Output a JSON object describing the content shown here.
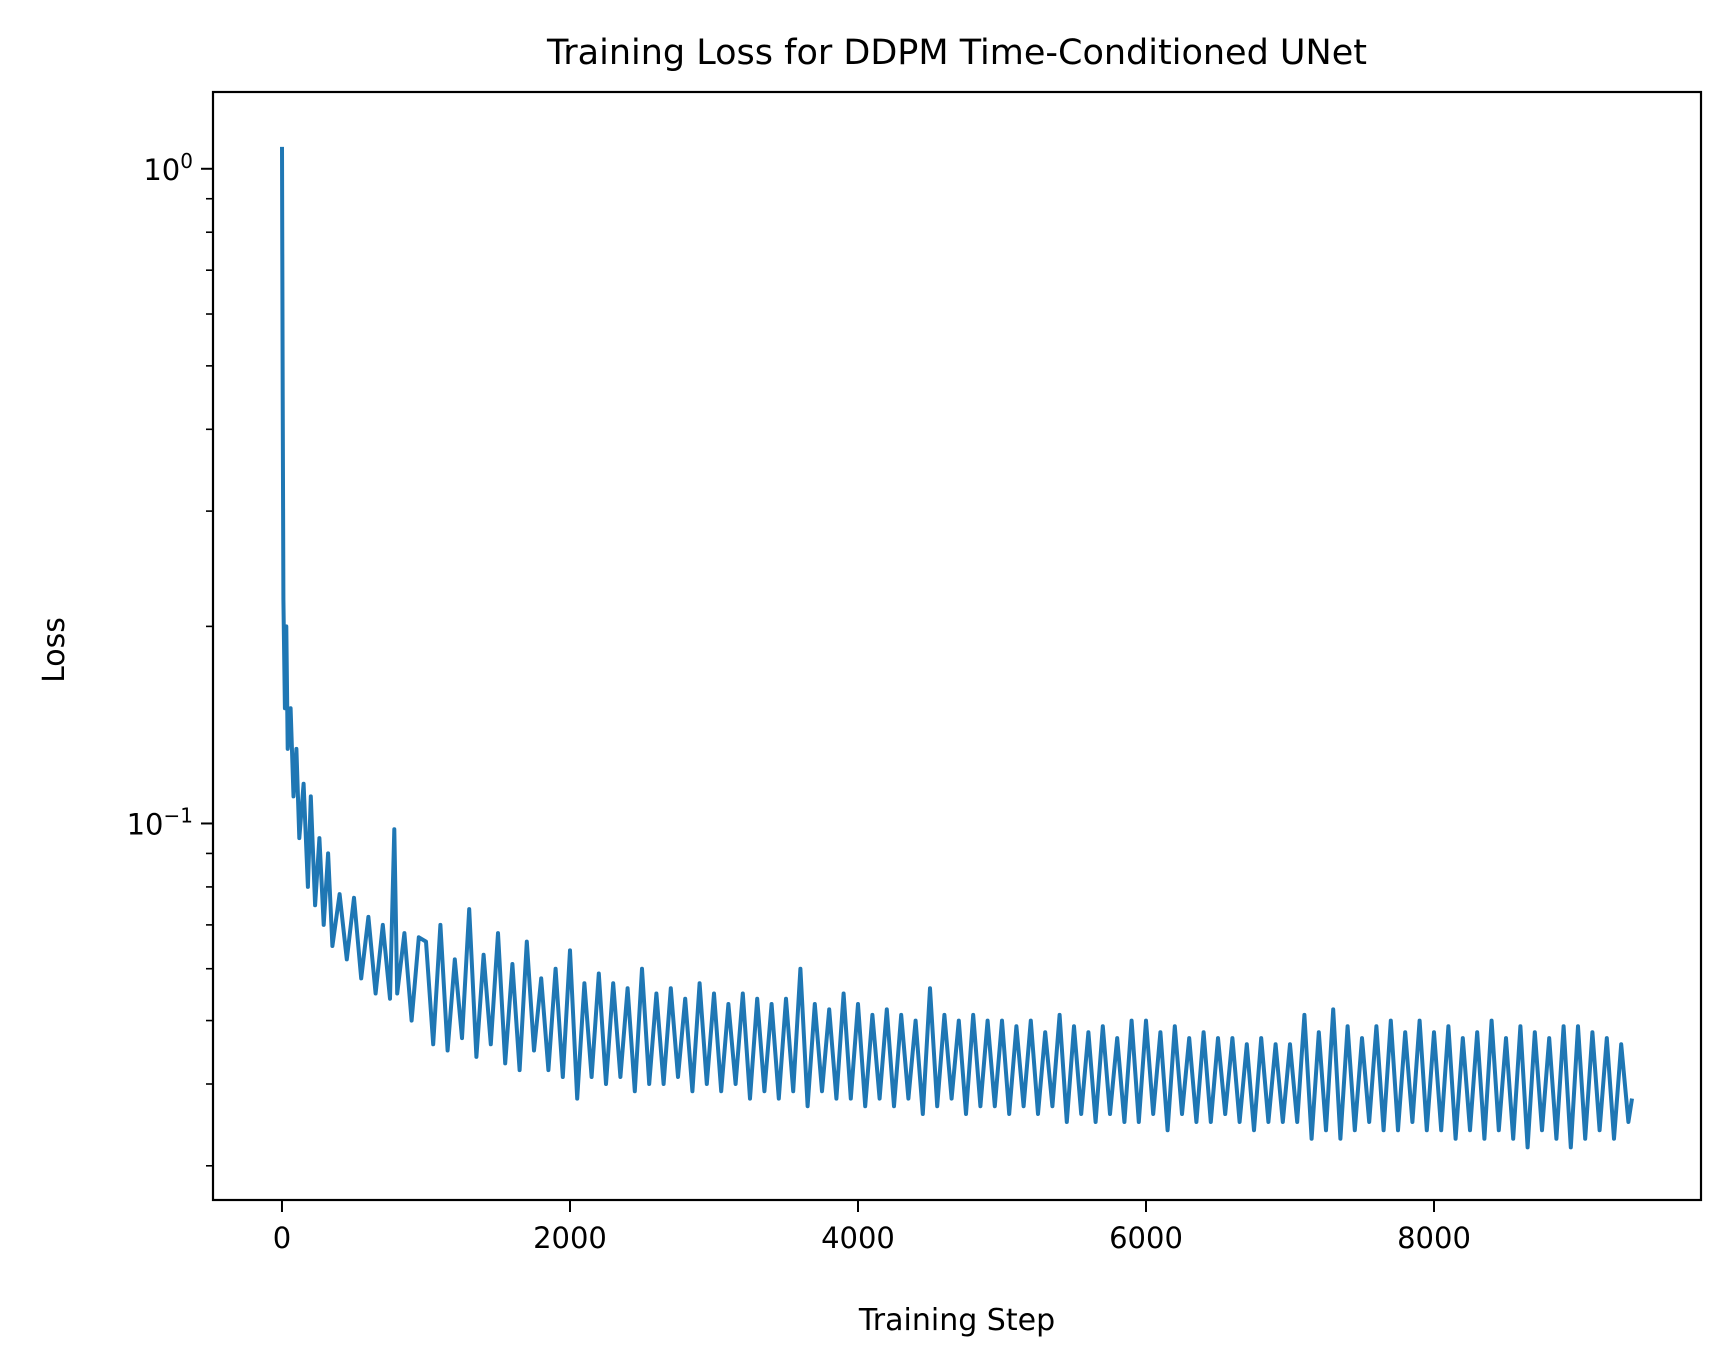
{
  "chart_data": {
    "type": "line",
    "title": "Training Loss for DDPM Time-Conditioned UNet",
    "xlabel": "Training Step",
    "ylabel": "Loss",
    "xscale": "linear",
    "yscale": "log",
    "xlim": [
      -479,
      9854
    ],
    "ylim": [
      0.0266,
      1.31
    ],
    "grid": false,
    "legend": "none",
    "line_color": "#1f77b4",
    "x_ticks": [
      {
        "value": 0,
        "label": "0"
      },
      {
        "value": 2000,
        "label": "2000"
      },
      {
        "value": 4000,
        "label": "4000"
      },
      {
        "value": 6000,
        "label": "6000"
      },
      {
        "value": 8000,
        "label": "8000"
      }
    ],
    "y_ticks": [
      {
        "value": 1,
        "base": "10",
        "exp": "0"
      },
      {
        "value": 0.1,
        "base": "10",
        "exp": "−1"
      }
    ],
    "y_minor_ticks": [
      0.03,
      0.04,
      0.05,
      0.06,
      0.07,
      0.08,
      0.09,
      0.2,
      0.3,
      0.4,
      0.5,
      0.6,
      0.7,
      0.8,
      0.9
    ],
    "series": [
      {
        "name": "loss",
        "early_x": [
          0,
          5,
          10,
          20,
          30,
          40,
          60,
          80,
          100,
          120,
          150,
          180,
          200,
          230,
          260,
          290,
          320,
          350,
          400,
          450,
          500,
          550,
          600,
          650,
          700,
          750,
          780,
          800,
          850,
          900,
          950
        ],
        "early_y": [
          1.08,
          0.45,
          0.22,
          0.15,
          0.2,
          0.13,
          0.15,
          0.11,
          0.13,
          0.095,
          0.115,
          0.08,
          0.11,
          0.075,
          0.095,
          0.07,
          0.09,
          0.065,
          0.078,
          0.062,
          0.077,
          0.058,
          0.072,
          0.055,
          0.07,
          0.054,
          0.098,
          0.055,
          0.068,
          0.05,
          0.067
        ],
        "uniform_x_start": 1000,
        "uniform_x_step": 50,
        "uniform_y": [
          0.066,
          0.046,
          0.07,
          0.045,
          0.062,
          0.047,
          0.074,
          0.044,
          0.063,
          0.046,
          0.068,
          0.043,
          0.061,
          0.042,
          0.066,
          0.045,
          0.058,
          0.042,
          0.06,
          0.041,
          0.064,
          0.038,
          0.057,
          0.041,
          0.059,
          0.04,
          0.057,
          0.041,
          0.056,
          0.039,
          0.06,
          0.04,
          0.055,
          0.04,
          0.056,
          0.041,
          0.054,
          0.039,
          0.057,
          0.04,
          0.055,
          0.039,
          0.053,
          0.04,
          0.055,
          0.038,
          0.054,
          0.039,
          0.053,
          0.038,
          0.054,
          0.039,
          0.06,
          0.037,
          0.053,
          0.039,
          0.052,
          0.038,
          0.055,
          0.038,
          0.053,
          0.037,
          0.051,
          0.038,
          0.052,
          0.037,
          0.051,
          0.038,
          0.05,
          0.036,
          0.056,
          0.037,
          0.051,
          0.038,
          0.05,
          0.036,
          0.051,
          0.037,
          0.05,
          0.037,
          0.05,
          0.036,
          0.049,
          0.037,
          0.05,
          0.036,
          0.048,
          0.037,
          0.051,
          0.035,
          0.049,
          0.036,
          0.048,
          0.035,
          0.049,
          0.036,
          0.047,
          0.035,
          0.05,
          0.035,
          0.05,
          0.036,
          0.048,
          0.034,
          0.049,
          0.036,
          0.047,
          0.035,
          0.048,
          0.035,
          0.047,
          0.036,
          0.047,
          0.035,
          0.046,
          0.034,
          0.047,
          0.035,
          0.046,
          0.035,
          0.046,
          0.035,
          0.051,
          0.033,
          0.048,
          0.034,
          0.052,
          0.033,
          0.049,
          0.034,
          0.047,
          0.035,
          0.049,
          0.034,
          0.05,
          0.034,
          0.048,
          0.035,
          0.05,
          0.034,
          0.048,
          0.034,
          0.049,
          0.033,
          0.047,
          0.034,
          0.048,
          0.033,
          0.05,
          0.034,
          0.047,
          0.033,
          0.049,
          0.032,
          0.048,
          0.034,
          0.047,
          0.033,
          0.049,
          0.032,
          0.049,
          0.033,
          0.048,
          0.034,
          0.047,
          0.033,
          0.046,
          0.035
        ],
        "final_x": 9375,
        "final_y": 0.038
      }
    ]
  }
}
